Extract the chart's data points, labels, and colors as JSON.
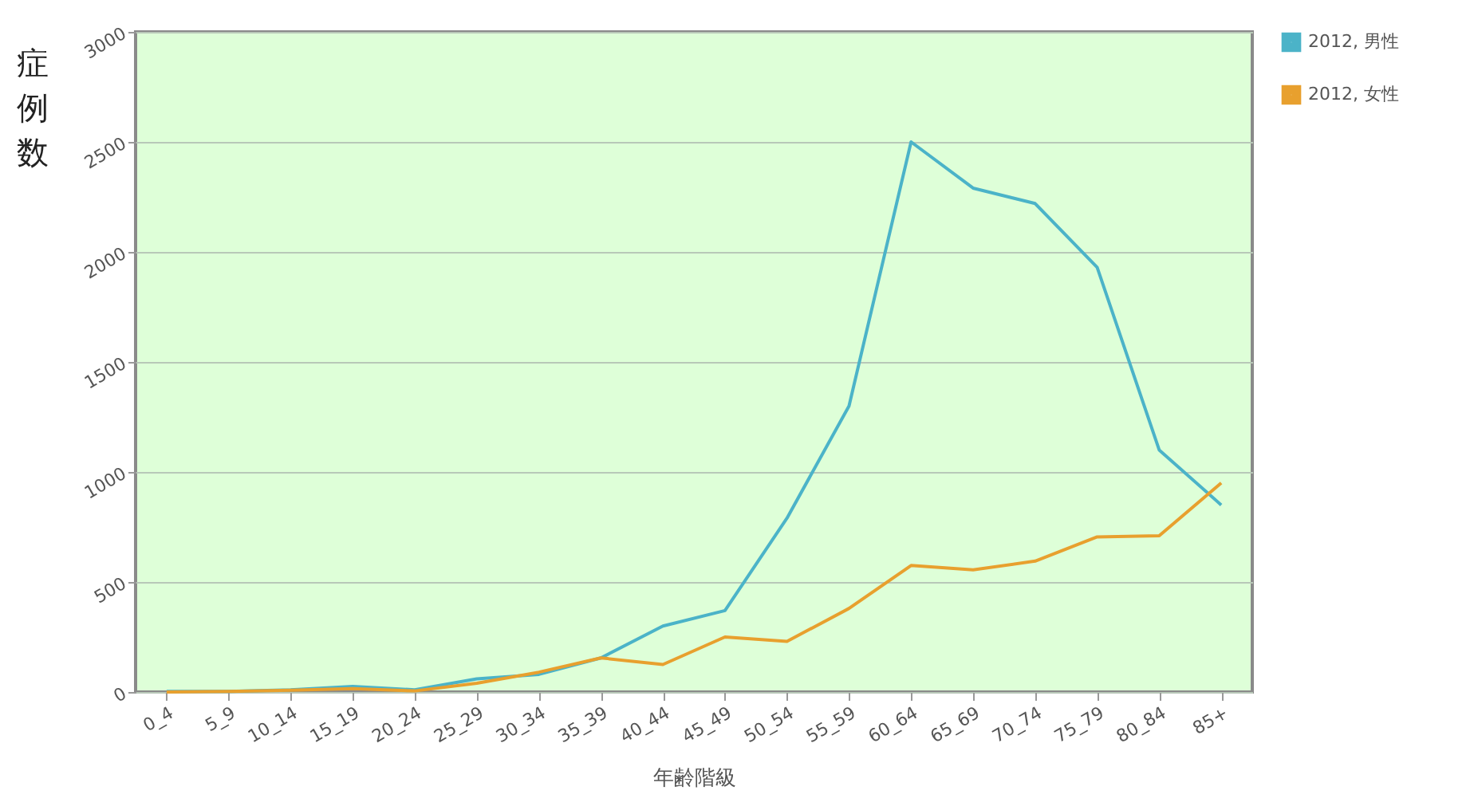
{
  "chart_data": {
    "type": "line",
    "xlabel": "年齢階級",
    "ylabel": "症例数",
    "categories": [
      "0_4",
      "5_9",
      "10_14",
      "15_19",
      "20_24",
      "25_29",
      "30_34",
      "35_39",
      "40_44",
      "45_49",
      "50_54",
      "55_59",
      "60_64",
      "65_69",
      "70_74",
      "75_79",
      "80_84",
      "85+"
    ],
    "series": [
      {
        "name": "2012, 男性",
        "color": "#4bb3c8",
        "values": [
          3,
          3,
          10,
          25,
          10,
          60,
          80,
          155,
          300,
          370,
          790,
          1300,
          2500,
          2290,
          2220,
          1930,
          1100,
          850
        ]
      },
      {
        "name": "2012, 女性",
        "color": "#e8a02e",
        "values": [
          0,
          3,
          8,
          15,
          5,
          40,
          90,
          155,
          125,
          250,
          230,
          380,
          575,
          555,
          595,
          705,
          710,
          950
        ]
      }
    ],
    "ylim": [
      0,
      3000
    ],
    "yticks": [
      0,
      500,
      1000,
      1500,
      2000,
      2500,
      3000
    ],
    "grid": "y",
    "legend": "top right",
    "marker": "none",
    "line_style": "solid"
  }
}
